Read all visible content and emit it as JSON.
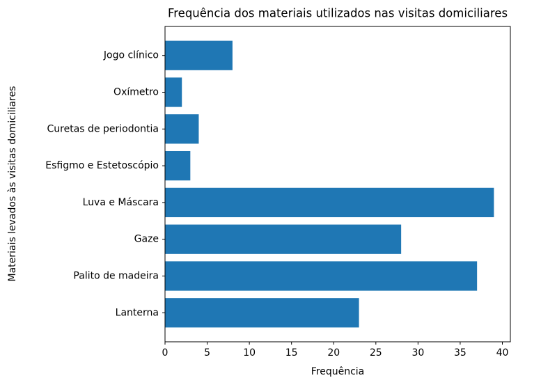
{
  "chart_data": {
    "type": "barh",
    "title": "Frequência dos materiais utilizados nas visitas domiciliares",
    "xlabel": "Frequência",
    "ylabel": "Materiais levados às visitas domiciliares",
    "categories": [
      "Lanterna",
      "Palito de madeira",
      "Gaze",
      "Luva e Máscara",
      "Esfigmo e Estetoscópio",
      "Curetas de periodontia",
      "Oxímetro",
      "Jogo clínico"
    ],
    "values": [
      23,
      37,
      28,
      39,
      3,
      4,
      2,
      8
    ],
    "color": "#1f77b4",
    "xlim": [
      0,
      40.95
    ],
    "xticks": [
      0,
      5,
      10,
      15,
      20,
      25,
      30,
      35,
      40
    ],
    "grid": false
  }
}
